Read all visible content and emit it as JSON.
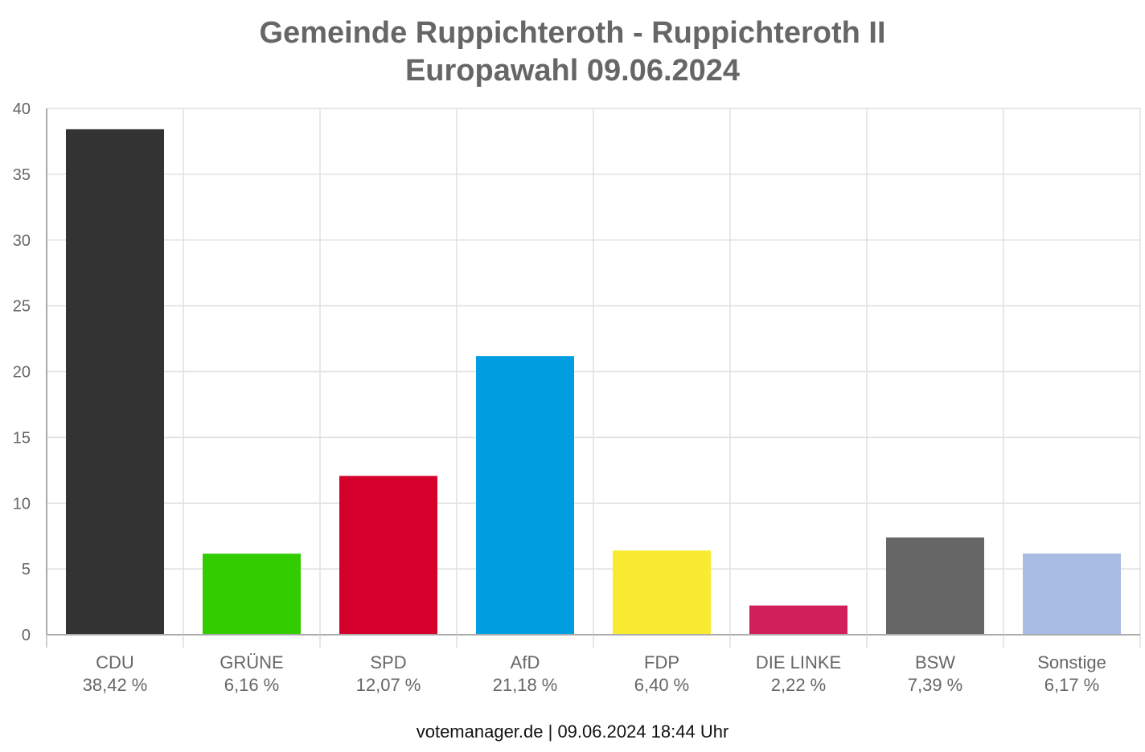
{
  "title_line1": "Gemeinde Ruppichteroth - Ruppichteroth II",
  "title_line2": "Europawahl 09.06.2024",
  "footer": "votemanager.de | 09.06.2024 18:44 Uhr",
  "chart_data": {
    "type": "bar",
    "categories": [
      "CDU",
      "GRÜNE",
      "SPD",
      "AfD",
      "FDP",
      "DIE LINKE",
      "BSW",
      "Sonstige"
    ],
    "values": [
      38.42,
      6.16,
      12.07,
      21.18,
      6.4,
      2.22,
      7.39,
      6.17
    ],
    "value_labels": [
      "38,42 %",
      "6,16 %",
      "12,07 %",
      "21,18 %",
      "6,40 %",
      "2,22 %",
      "7,39 %",
      "6,17 %"
    ],
    "colors": [
      "#333333",
      "#33cc00",
      "#d6002c",
      "#009ee0",
      "#f9eb31",
      "#d11f5b",
      "#666666",
      "#a9bde4"
    ],
    "ylim": [
      0,
      40
    ],
    "yticks": [
      "0",
      "5",
      "10",
      "15",
      "20",
      "25",
      "30",
      "35",
      "40"
    ],
    "grid": true,
    "legend": "none"
  }
}
